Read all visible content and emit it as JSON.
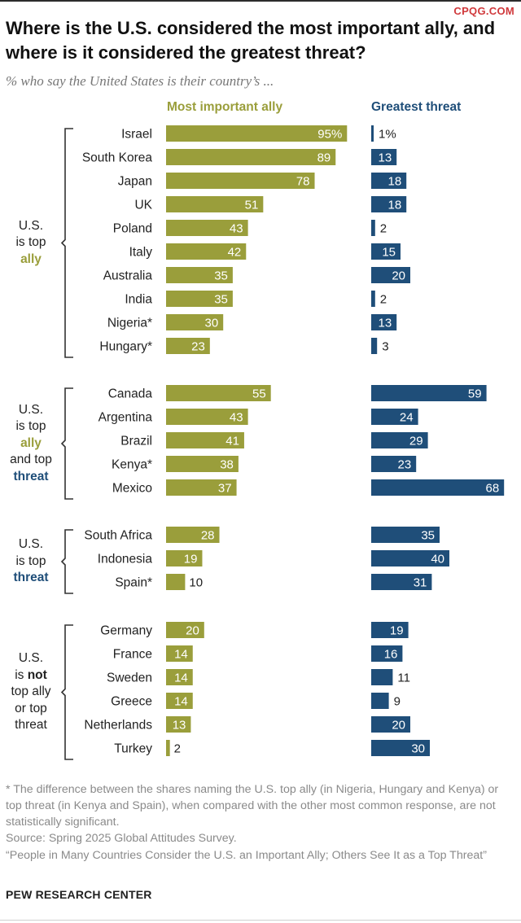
{
  "watermark": "CPQG.COM",
  "title": "Where is the U.S. considered the most important ally, and where is it considered the greatest threat?",
  "subtitle": "% who say the United States is their country’s ...",
  "colors": {
    "ally": "#9a9e3b",
    "threat": "#1f4e79"
  },
  "chart_data": {
    "type": "bar",
    "orientation": "horizontal",
    "value_suffix_first_row": "%",
    "series": [
      {
        "name": "Most important ally",
        "color": "#9a9e3b",
        "values": [
          95,
          89,
          78,
          51,
          43,
          42,
          35,
          35,
          30,
          23,
          55,
          43,
          41,
          38,
          37,
          28,
          19,
          10,
          20,
          14,
          14,
          14,
          13,
          2
        ]
      },
      {
        "name": "Greatest threat",
        "color": "#1f4e79",
        "values": [
          1,
          13,
          18,
          18,
          2,
          15,
          20,
          2,
          13,
          3,
          59,
          24,
          29,
          23,
          68,
          35,
          40,
          31,
          19,
          16,
          11,
          9,
          20,
          30
        ]
      }
    ],
    "categories": [
      "Israel",
      "South Korea",
      "Japan",
      "UK",
      "Poland",
      "Italy",
      "Australia",
      "India",
      "Nigeria*",
      "Hungary*",
      "Canada",
      "Argentina",
      "Brazil",
      "Kenya*",
      "Mexico",
      "South Africa",
      "Indonesia",
      "Spain*",
      "Germany",
      "France",
      "Sweden",
      "Greece",
      "Netherlands",
      "Turkey"
    ],
    "groups": [
      {
        "label_parts": [
          [
            "U.S.",
            ""
          ],
          [
            "is top",
            ""
          ],
          [
            "ally",
            "ally"
          ]
        ],
        "countries": [
          "Israel",
          "South Korea",
          "Japan",
          "UK",
          "Poland",
          "Italy",
          "Australia",
          "India",
          "Nigeria*",
          "Hungary*"
        ]
      },
      {
        "label_parts": [
          [
            "U.S.",
            ""
          ],
          [
            "is top",
            ""
          ],
          [
            "ally",
            "ally"
          ],
          [
            "and top",
            ""
          ],
          [
            "threat",
            "threat"
          ]
        ],
        "countries": [
          "Canada",
          "Argentina",
          "Brazil",
          "Kenya*",
          "Mexico"
        ]
      },
      {
        "label_parts": [
          [
            "U.S.",
            ""
          ],
          [
            "is top",
            ""
          ],
          [
            "threat",
            "threat"
          ]
        ],
        "countries": [
          "South Africa",
          "Indonesia",
          "Spain*"
        ]
      },
      {
        "label_parts": [
          [
            "U.S.",
            ""
          ],
          [
            "is ",
            "",
            "not",
            "bold"
          ],
          [
            "top ally",
            ""
          ],
          [
            "or top",
            ""
          ],
          [
            "threat",
            ""
          ]
        ],
        "countries": [
          "Germany",
          "France",
          "Sweden",
          "Greece",
          "Netherlands",
          "Turkey"
        ]
      }
    ]
  },
  "footnote": "* The difference between the shares naming the U.S. top ally (in Nigeria, Hungary and Kenya) or top threat (in Kenya and Spain), when compared with the other most common response, are not statistically significant.",
  "source": "Source: Spring 2025 Global Attitudes Survey.",
  "report": "“People in Many Countries Consider the U.S. an Important Ally; Others See It as a Top Threat”",
  "org": "PEW RESEARCH CENTER"
}
